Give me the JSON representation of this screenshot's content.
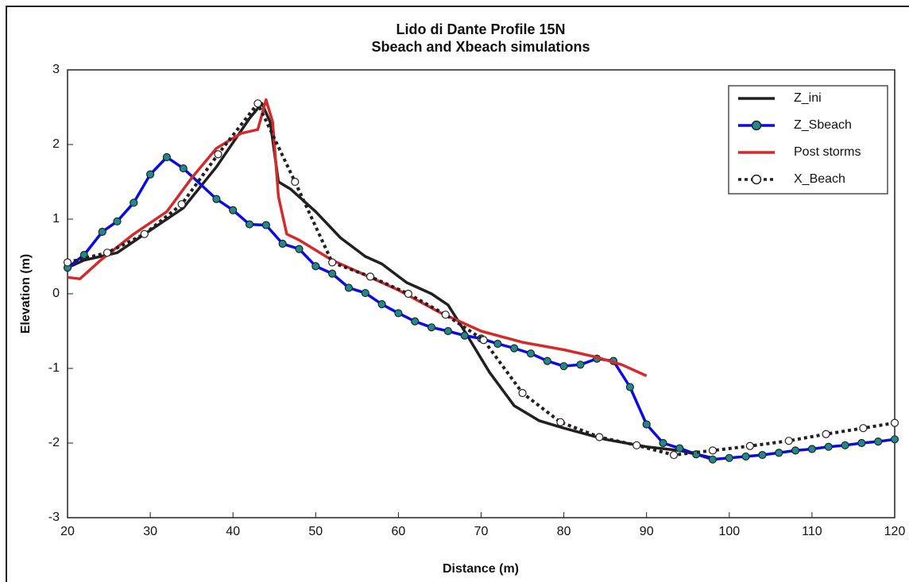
{
  "chart_data": {
    "type": "line",
    "title": "Lido di Dante Profile 15N",
    "subtitle": "Sbeach and Xbeach simulations",
    "x_label": "Distance (m)",
    "y_label": "Elevation (m)",
    "xlim": [
      20,
      120
    ],
    "xticks": [
      20,
      30,
      40,
      50,
      60,
      70,
      80,
      90,
      100,
      110,
      120
    ],
    "ylim": [
      -3,
      3
    ],
    "yticks": [
      -3,
      -2,
      -1,
      0,
      1,
      2,
      3
    ],
    "legend": "upper right",
    "series": [
      {
        "name": "Z_ini",
        "color": "#231f20",
        "dash": false,
        "marker": false,
        "x": [
          20,
          22,
          26,
          30,
          34,
          38,
          42,
          43.5,
          44.5,
          45.5,
          47,
          50,
          53,
          56,
          58,
          61,
          64,
          66,
          68,
          71,
          74,
          77,
          80,
          85,
          90,
          94,
          98
        ],
        "values": [
          0.35,
          0.45,
          0.55,
          0.85,
          1.15,
          1.7,
          2.35,
          2.55,
          2.3,
          1.5,
          1.4,
          1.1,
          0.75,
          0.5,
          0.4,
          0.15,
          0,
          -0.15,
          -0.5,
          -1.05,
          -1.5,
          -1.7,
          -1.8,
          -1.95,
          -2.05,
          -2.1,
          -2.2
        ]
      },
      {
        "name": "Z_Sbeach",
        "color": "#0a0ae6",
        "dash": false,
        "marker": true,
        "marker_fill": "#1f8a8c",
        "x": [
          20,
          22,
          24.2,
          26,
          28,
          30,
          32,
          34,
          38,
          40,
          42,
          44,
          46,
          48,
          50,
          52,
          54,
          56,
          58,
          60,
          62,
          64,
          66,
          68,
          70,
          72,
          74,
          76,
          78,
          80,
          82,
          84,
          86,
          88,
          90,
          92,
          94,
          96,
          98,
          100,
          102,
          104,
          106,
          108,
          110,
          112,
          114,
          116,
          118,
          120
        ],
        "values": [
          0.35,
          0.52,
          0.83,
          0.97,
          1.22,
          1.6,
          1.83,
          1.68,
          1.27,
          1.12,
          0.93,
          0.92,
          0.67,
          0.6,
          0.37,
          0.27,
          0.08,
          0.01,
          -0.14,
          -0.26,
          -0.37,
          -0.45,
          -0.5,
          -0.56,
          -0.6,
          -0.67,
          -0.73,
          -0.8,
          -0.9,
          -0.97,
          -0.95,
          -0.87,
          -0.9,
          -1.25,
          -1.75,
          -2.0,
          -2.07,
          -2.15,
          -2.22,
          -2.2,
          -2.18,
          -2.16,
          -2.13,
          -2.1,
          -2.08,
          -2.05,
          -2.03,
          -2.0,
          -1.98,
          -1.95
        ]
      },
      {
        "name": "Post storms",
        "color": "#d42a2a",
        "dash": false,
        "marker": false,
        "x": [
          20,
          21.5,
          24,
          28,
          32,
          35,
          38,
          41,
          43,
          44,
          44.8,
          45.5,
          46.5,
          48,
          52,
          56,
          60,
          65,
          70,
          75,
          80,
          84,
          87,
          90
        ],
        "values": [
          0.22,
          0.2,
          0.45,
          0.8,
          1.1,
          1.55,
          1.95,
          2.15,
          2.2,
          2.6,
          2.3,
          1.3,
          0.8,
          0.72,
          0.45,
          0.25,
          0.05,
          -0.25,
          -0.5,
          -0.65,
          -0.75,
          -0.85,
          -0.95,
          -1.1
        ]
      },
      {
        "name": "X_Beach",
        "color": "#231f20",
        "dash": true,
        "marker": true,
        "marker_fill": "#ffffff",
        "x": [
          20,
          24.8,
          29.3,
          33.8,
          38.2,
          43,
          47.5,
          52,
          56.6,
          61.2,
          65.7,
          70.3,
          75,
          79.6,
          84.3,
          88.8,
          93.3,
          98,
          102.5,
          107.2,
          111.7,
          116.2,
          120
        ],
        "values": [
          0.42,
          0.55,
          0.8,
          1.2,
          1.87,
          2.55,
          1.5,
          0.42,
          0.23,
          0,
          -0.28,
          -0.62,
          -1.33,
          -1.72,
          -1.92,
          -2.03,
          -2.16,
          -2.1,
          -2.04,
          -1.97,
          -1.88,
          -1.8,
          -1.73
        ]
      }
    ]
  }
}
